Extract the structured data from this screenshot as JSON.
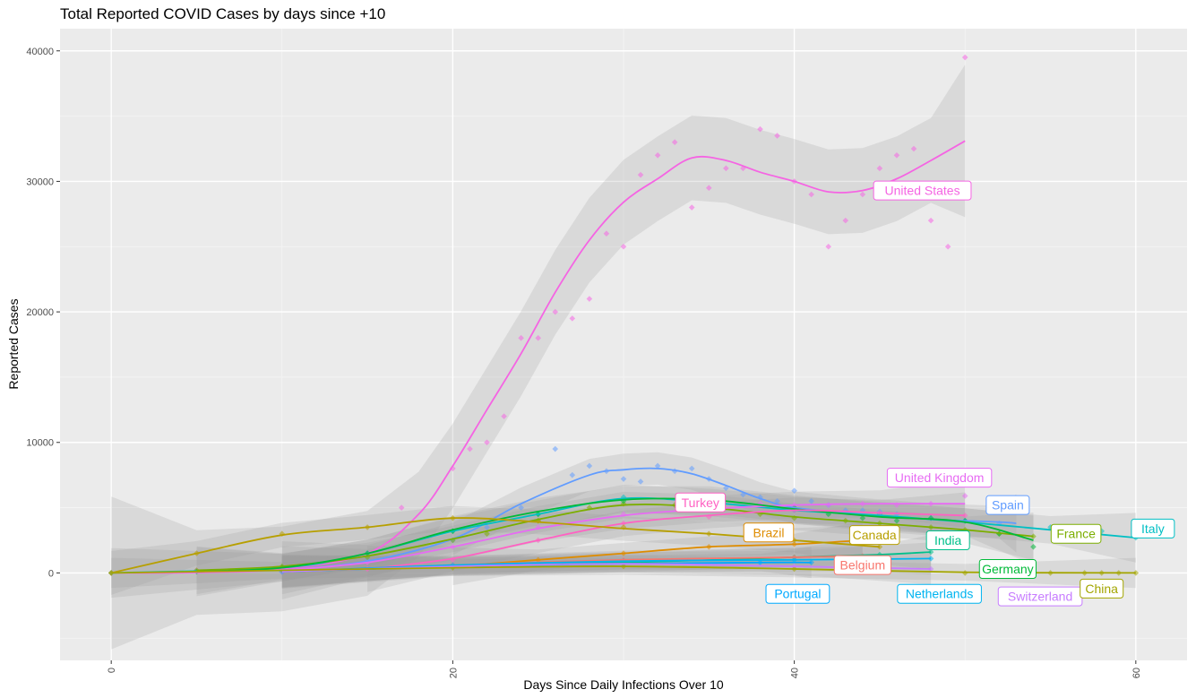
{
  "chart_data": {
    "type": "scatter",
    "title": "Total Reported COVID Cases by days since +10",
    "xlabel": "Days Since Daily Infections Over 10",
    "ylabel": "Reported Cases",
    "xlim": [
      -3,
      63
    ],
    "ylim": [
      -6700,
      41700
    ],
    "x_ticks": [
      0,
      20,
      40,
      60
    ],
    "y_ticks": [
      0,
      10000,
      20000,
      30000,
      40000
    ],
    "x_tick_labels": [
      "0",
      "20",
      "40",
      "60"
    ],
    "y_tick_labels": [
      "0",
      "10000",
      "20000",
      "30000",
      "40000"
    ],
    "grid": true,
    "legend": "direct labels on lines",
    "series": [
      {
        "name": "United States",
        "color": "#F564E3",
        "x": [
          0,
          5,
          10,
          15,
          17,
          20,
          21,
          22,
          23,
          24,
          25,
          26,
          27,
          28,
          29,
          30,
          31,
          32,
          33,
          34,
          35,
          36,
          37,
          38,
          39,
          40,
          41,
          42,
          43,
          44,
          45,
          46,
          47,
          48,
          49,
          50
        ],
        "y": [
          0,
          200,
          400,
          1500,
          5000,
          8000,
          9500,
          10000,
          12000,
          18000,
          18000,
          20000,
          19500,
          21000,
          26000,
          25000,
          30500,
          32000,
          33000,
          28000,
          29500,
          31000,
          31000,
          34000,
          33500,
          30000,
          29000,
          25000,
          27000,
          29000,
          31000,
          32000,
          32500,
          27000,
          25000,
          39500
        ],
        "trend_x": [
          0,
          5,
          10,
          15,
          18,
          20,
          22,
          24,
          26,
          28,
          30,
          32,
          34,
          36,
          38,
          40,
          42,
          44,
          46,
          48,
          50
        ],
        "trend_y": [
          0,
          30,
          300,
          1500,
          4500,
          8200,
          12500,
          16800,
          21500,
          25500,
          28400,
          30200,
          31800,
          31600,
          30700,
          30000,
          29200,
          29300,
          30200,
          31600,
          33100
        ],
        "label_x": 47.5,
        "label_y": 29300
      },
      {
        "name": "Spain",
        "color": "#619CFF",
        "x": [
          10,
          15,
          20,
          22,
          24,
          26,
          27,
          28,
          29,
          30,
          31,
          32,
          33,
          34,
          35,
          36,
          37,
          38,
          39,
          40,
          41,
          42,
          43,
          44,
          45,
          46,
          48,
          50,
          52
        ],
        "y": [
          200,
          1000,
          2500,
          3500,
          5000,
          9500,
          7500,
          8200,
          7800,
          7200,
          7000,
          8200,
          7800,
          8000,
          7200,
          6500,
          6000,
          5800,
          5500,
          6300,
          5500,
          5200,
          4800,
          4800,
          4700,
          4500,
          4200,
          4000,
          3800
        ],
        "trend_x": [
          10,
          15,
          20,
          24,
          28,
          30,
          32,
          34,
          36,
          38,
          40,
          44,
          48,
          52,
          53
        ],
        "trend_y": [
          200,
          900,
          2600,
          5300,
          7500,
          7900,
          8000,
          7600,
          6700,
          5700,
          5000,
          4500,
          4100,
          3900,
          3800
        ],
        "label_x": 52.5,
        "label_y": 5200
      },
      {
        "name": "Italy",
        "color": "#00BFC4",
        "x": [
          0,
          10,
          15,
          20,
          25,
          30,
          35,
          40,
          45,
          50,
          55,
          58,
          60
        ],
        "y": [
          0,
          400,
          1500,
          3200,
          4500,
          5800,
          5300,
          4800,
          4500,
          4000,
          3500,
          3200,
          2700
        ],
        "trend_x": [
          0,
          10,
          15,
          20,
          25,
          30,
          35,
          40,
          45,
          50,
          55,
          60
        ],
        "trend_y": [
          0,
          400,
          1500,
          3200,
          4500,
          5700,
          5400,
          4800,
          4400,
          3900,
          3300,
          2700
        ],
        "label_x": 61,
        "label_y": 3400
      },
      {
        "name": "France",
        "color": "#7CAE00",
        "x": [
          5,
          10,
          15,
          20,
          22,
          25,
          28,
          30,
          33,
          35,
          38,
          40,
          43,
          45,
          48,
          50,
          52,
          54
        ],
        "y": [
          200,
          500,
          1200,
          2500,
          3000,
          4000,
          5000,
          5300,
          5200,
          4900,
          4500,
          4200,
          4000,
          3800,
          3500,
          3300,
          3000,
          2800
        ],
        "trend_x": [
          5,
          10,
          15,
          20,
          25,
          30,
          35,
          40,
          45,
          50,
          54
        ],
        "trend_y": [
          200,
          500,
          1300,
          2600,
          4100,
          5200,
          5000,
          4300,
          3800,
          3300,
          2800
        ],
        "label_x": 56.5,
        "label_y": 3000
      },
      {
        "name": "United Kingdom",
        "color": "#E76BF3",
        "x": [
          10,
          15,
          20,
          25,
          30,
          35,
          38,
          40,
          42,
          44,
          46,
          48,
          50
        ],
        "y": [
          200,
          800,
          2000,
          3500,
          4500,
          5000,
          5300,
          5200,
          5200,
          5300,
          5200,
          5300,
          5900
        ],
        "trend_x": [
          10,
          15,
          20,
          25,
          30,
          35,
          40,
          45,
          50
        ],
        "trend_y": [
          200,
          800,
          2000,
          3400,
          4400,
          4900,
          5200,
          5300,
          5300
        ],
        "label_x": 48.5,
        "label_y": 7300
      },
      {
        "name": "Germany",
        "color": "#00BA38",
        "x": [
          5,
          10,
          15,
          20,
          25,
          30,
          35,
          40,
          42,
          44,
          46,
          48,
          50,
          52,
          54
        ],
        "y": [
          100,
          400,
          1500,
          3200,
          4500,
          5500,
          5700,
          5000,
          4500,
          4200,
          4000,
          4200,
          4000,
          3000,
          2000
        ],
        "trend_x": [
          5,
          10,
          15,
          20,
          25,
          30,
          35,
          40,
          45,
          50,
          54
        ],
        "trend_y": [
          100,
          400,
          1500,
          3300,
          4700,
          5600,
          5600,
          4900,
          4300,
          3900,
          2500
        ],
        "label_x": 52.5,
        "label_y": 300
      },
      {
        "name": "Turkey",
        "color": "#FF61C3",
        "x": [
          15,
          20,
          25,
          30,
          35,
          40,
          45,
          50
        ],
        "y": [
          300,
          1000,
          2500,
          3800,
          4300,
          4800,
          4600,
          4400
        ],
        "trend_x": [
          15,
          20,
          25,
          30,
          35,
          40,
          45,
          50
        ],
        "trend_y": [
          300,
          1100,
          2500,
          3800,
          4400,
          4800,
          4600,
          4400
        ],
        "label_x": 34.5,
        "label_y": 5400
      },
      {
        "name": "Brazil",
        "color": "#DE8C00",
        "x": [
          20,
          25,
          30,
          35,
          40,
          44
        ],
        "y": [
          500,
          1000,
          1500,
          2000,
          2200,
          2500
        ],
        "trend_x": [
          20,
          25,
          30,
          35,
          40,
          44
        ],
        "trend_y": [
          500,
          1000,
          1500,
          2000,
          2200,
          2500
        ],
        "label_x": 38.5,
        "label_y": 3100
      },
      {
        "name": "Canada",
        "color": "#B79F00",
        "x": [
          0,
          5,
          10,
          15,
          20,
          25,
          30,
          35,
          40,
          45
        ],
        "y": [
          0,
          1500,
          3000,
          3500,
          4200,
          4000,
          3500,
          3000,
          2500,
          2000
        ],
        "trend_x": [
          0,
          5,
          10,
          15,
          20,
          25,
          30,
          35,
          40,
          45
        ],
        "trend_y": [
          0,
          1500,
          2900,
          3500,
          4200,
          3900,
          3400,
          3000,
          2500,
          2000
        ],
        "label_x": 44.7,
        "label_y": 2900
      },
      {
        "name": "India",
        "color": "#00C08B",
        "x": [
          10,
          20,
          30,
          40,
          45,
          48
        ],
        "y": [
          100,
          500,
          800,
          1200,
          1400,
          1600
        ],
        "trend_x": [
          10,
          20,
          30,
          40,
          45,
          48
        ],
        "trend_y": [
          100,
          500,
          800,
          1200,
          1400,
          1600
        ],
        "label_x": 49.0,
        "label_y": 2500
      },
      {
        "name": "Belgium",
        "color": "#F8766D",
        "x": [
          10,
          20,
          30,
          40,
          44
        ],
        "y": [
          100,
          600,
          1000,
          1200,
          1300
        ],
        "trend_x": [
          10,
          20,
          30,
          40,
          44
        ],
        "trend_y": [
          100,
          600,
          1000,
          1200,
          1300
        ],
        "label_x": 44.0,
        "label_y": 600
      },
      {
        "name": "Netherlands",
        "color": "#00B4F0",
        "x": [
          10,
          20,
          30,
          40,
          48
        ],
        "y": [
          100,
          600,
          900,
          1000,
          1100
        ],
        "trend_x": [
          10,
          20,
          30,
          40,
          48
        ],
        "trend_y": [
          100,
          600,
          900,
          1000,
          1100
        ],
        "label_x": 48.5,
        "label_y": -1600
      },
      {
        "name": "Portugal",
        "color": "#00A9FF",
        "x": [
          10,
          20,
          30,
          38,
          41
        ],
        "y": [
          100,
          500,
          700,
          800,
          800
        ],
        "trend_x": [
          10,
          20,
          30,
          38,
          41
        ],
        "trend_y": [
          100,
          500,
          700,
          800,
          800
        ],
        "label_x": 40.2,
        "label_y": -1600
      },
      {
        "name": "Switzerland",
        "color": "#C77CFF",
        "x": [
          10,
          20,
          30,
          40,
          48
        ],
        "y": [
          100,
          500,
          700,
          500,
          300
        ],
        "trend_x": [
          10,
          20,
          30,
          40,
          48
        ],
        "trend_y": [
          100,
          500,
          700,
          500,
          300
        ],
        "label_x": 54.4,
        "label_y": -1800
      },
      {
        "name": "China",
        "color": "#A3A500",
        "x": [
          0,
          10,
          20,
          30,
          40,
          50,
          55,
          57,
          58,
          59,
          60
        ],
        "y": [
          0,
          200,
          400,
          500,
          300,
          0,
          0,
          0,
          0,
          0,
          0
        ],
        "trend_x": [
          0,
          10,
          20,
          30,
          40,
          50,
          60
        ],
        "trend_y": [
          0,
          200,
          400,
          500,
          300,
          50,
          0
        ],
        "label_x": 58.0,
        "label_y": -1200
      }
    ]
  }
}
